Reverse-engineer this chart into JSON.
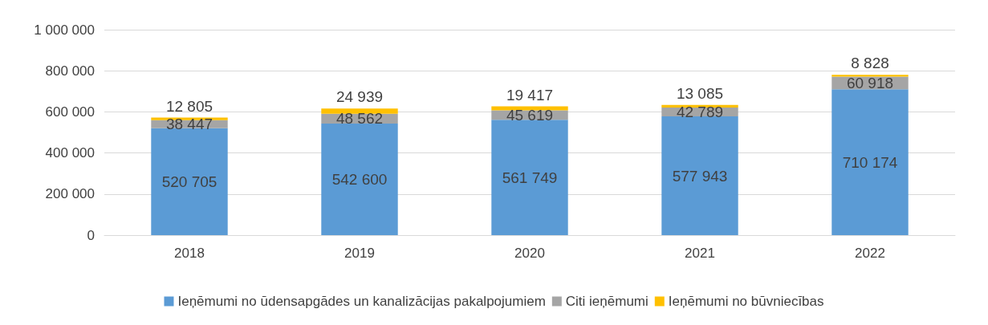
{
  "chart_data": {
    "type": "bar",
    "stacked": true,
    "categories": [
      "2018",
      "2019",
      "2020",
      "2021",
      "2022"
    ],
    "series": [
      {
        "name": "Ieņēmumi no ūdensapgādes un kanalizācijas pakalpojumiem",
        "color": "#5b9bd5",
        "values": [
          520705,
          542600,
          561749,
          577943,
          710174
        ],
        "value_labels": [
          "520 705",
          "542 600",
          "561 749",
          "577 943",
          "710 174"
        ]
      },
      {
        "name": "Citi ieņēmumi",
        "color": "#a5a5a5",
        "values": [
          38447,
          48562,
          45619,
          42789,
          60918
        ],
        "value_labels": [
          "38 447",
          "48 562",
          "45 619",
          "42 789",
          "60 918"
        ]
      },
      {
        "name": "Ieņēmumi no būvniecības",
        "color": "#ffc000",
        "values": [
          12805,
          24939,
          19417,
          13085,
          8828
        ],
        "value_labels": [
          "12 805",
          "24 939",
          "19 417",
          "13 085",
          "8 828"
        ]
      }
    ],
    "ylim": [
      0,
      1000000
    ],
    "yticks": [
      0,
      {
        "value": 200000,
        "label": "200 000"
      },
      {
        "value": 400000,
        "label": "400 000"
      },
      {
        "value": 600000,
        "label": "600 000"
      },
      {
        "value": 800000,
        "label": "800 000"
      },
      {
        "value": 1000000,
        "label": "1 000 000"
      }
    ],
    "grid": "y",
    "legend": "bottom"
  }
}
